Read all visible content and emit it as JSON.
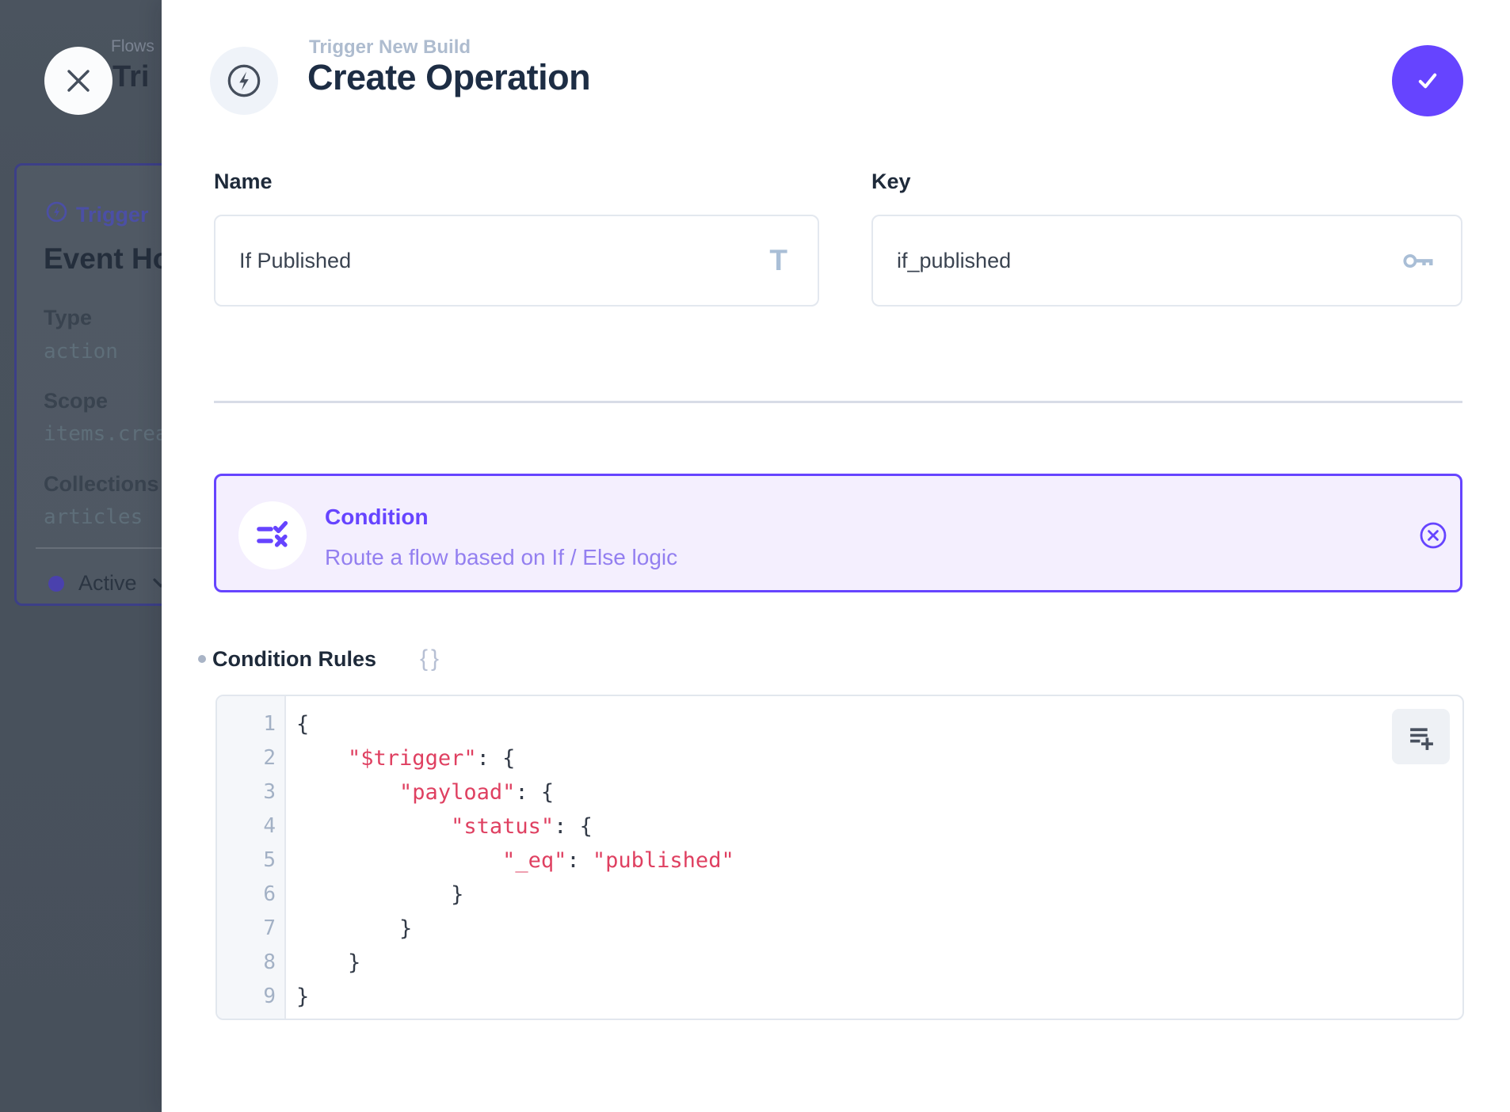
{
  "colors": {
    "primary": "#6644ff",
    "syntax-red": "#df4061"
  },
  "backdrop": {
    "breadcrumb": "Flows",
    "page_title": "Tri",
    "trigger_card": {
      "header_label": "Trigger",
      "title": "Event Hook",
      "fields": [
        {
          "label": "Type",
          "value": "action"
        },
        {
          "label": "Scope",
          "value": "items.create"
        },
        {
          "label": "Collections",
          "value": "articles"
        }
      ],
      "status": "Active"
    }
  },
  "drawer": {
    "eyebrow": "Trigger New Build",
    "title": "Create Operation",
    "fields": {
      "name": {
        "label": "Name",
        "value": "If Published"
      },
      "key": {
        "label": "Key",
        "value": "if_published"
      }
    },
    "operation_card": {
      "title": "Condition",
      "subtitle": "Route a flow based on If / Else logic"
    },
    "rules": {
      "label": "Condition Rules",
      "raw_icon": "{}",
      "lines": [
        {
          "n": "1",
          "parts": [
            {
              "t": "{",
              "c": "p"
            }
          ]
        },
        {
          "n": "2",
          "parts": [
            {
              "t": "    ",
              "c": "p"
            },
            {
              "t": "\"$trigger\"",
              "c": "r"
            },
            {
              "t": ": {",
              "c": "p"
            }
          ]
        },
        {
          "n": "3",
          "parts": [
            {
              "t": "        ",
              "c": "p"
            },
            {
              "t": "\"payload\"",
              "c": "r"
            },
            {
              "t": ": {",
              "c": "p"
            }
          ]
        },
        {
          "n": "4",
          "parts": [
            {
              "t": "            ",
              "c": "p"
            },
            {
              "t": "\"status\"",
              "c": "r"
            },
            {
              "t": ": {",
              "c": "p"
            }
          ]
        },
        {
          "n": "5",
          "parts": [
            {
              "t": "                ",
              "c": "p"
            },
            {
              "t": "\"_eq\"",
              "c": "r"
            },
            {
              "t": ": ",
              "c": "p"
            },
            {
              "t": "\"published\"",
              "c": "r"
            }
          ]
        },
        {
          "n": "6",
          "parts": [
            {
              "t": "            }",
              "c": "p"
            }
          ]
        },
        {
          "n": "7",
          "parts": [
            {
              "t": "        }",
              "c": "p"
            }
          ]
        },
        {
          "n": "8",
          "parts": [
            {
              "t": "    }",
              "c": "p"
            }
          ]
        },
        {
          "n": "9",
          "parts": [
            {
              "t": "}",
              "c": "p"
            }
          ]
        }
      ]
    }
  }
}
